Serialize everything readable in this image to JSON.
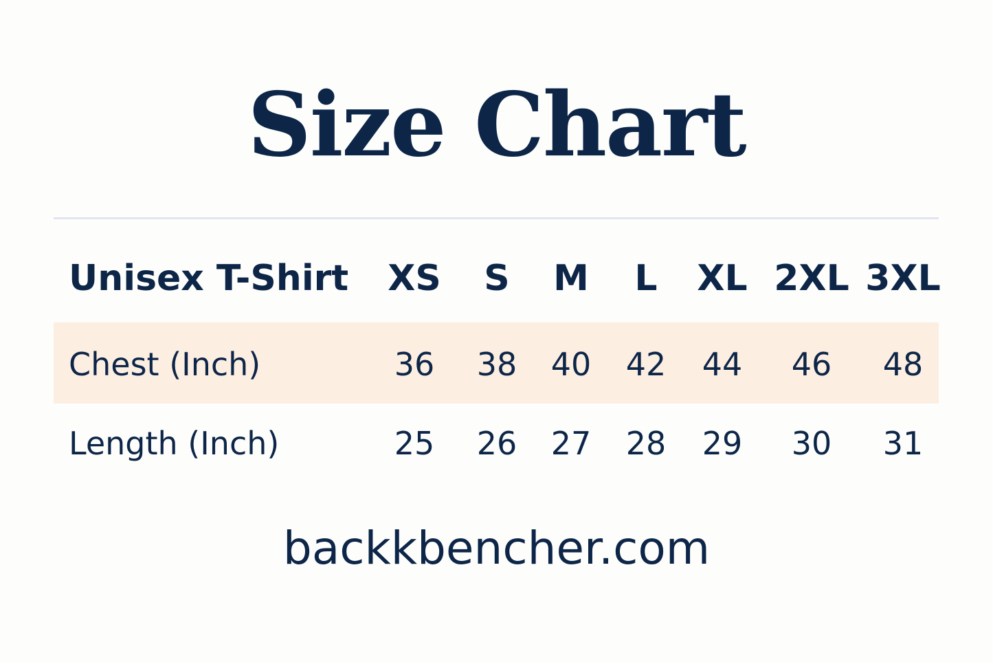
{
  "title": "Size Chart",
  "table": {
    "header_label": "Unisex T-Shirt",
    "sizes": [
      "XS",
      "S",
      "M",
      "L",
      "XL",
      "2XL",
      "3XL"
    ],
    "rows": [
      {
        "label": "Chest (Inch)",
        "values": [
          "36",
          "38",
          "40",
          "42",
          "44",
          "46",
          "48"
        ]
      },
      {
        "label": "Length (Inch)",
        "values": [
          "25",
          "26",
          "27",
          "28",
          "29",
          "30",
          "31"
        ]
      }
    ]
  },
  "footer": "backkbencher.com",
  "colors": {
    "text": "#0d2648",
    "highlight_row": "#fdeee2",
    "divider": "#dfe6ef",
    "background": "#fdfdfc"
  }
}
